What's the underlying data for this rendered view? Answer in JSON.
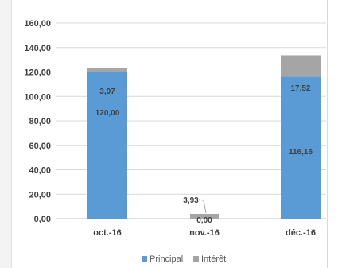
{
  "chart_data": {
    "type": "bar",
    "stacked": true,
    "categories": [
      "oct.-16",
      "nov.-16",
      "déc.-16"
    ],
    "series": [
      {
        "name": "Principal",
        "values": [
          120.0,
          0.0,
          116.16
        ],
        "color": "#5b9bd5",
        "labels": [
          "120,00",
          "0,00",
          "116,16"
        ]
      },
      {
        "name": "Intérêt",
        "values": [
          3.07,
          3.93,
          17.52
        ],
        "color": "#a5a5a5",
        "labels": [
          "3,07",
          "3,93",
          "17,52"
        ]
      }
    ],
    "y_ticks": [
      "0,00",
      "20,00",
      "40,00",
      "60,00",
      "80,00",
      "100,00",
      "120,00",
      "140,00",
      "160,00"
    ],
    "ylim": [
      0,
      160
    ],
    "grid": true,
    "legend_position": "bottom",
    "title": "",
    "xlabel": "",
    "ylabel": ""
  }
}
